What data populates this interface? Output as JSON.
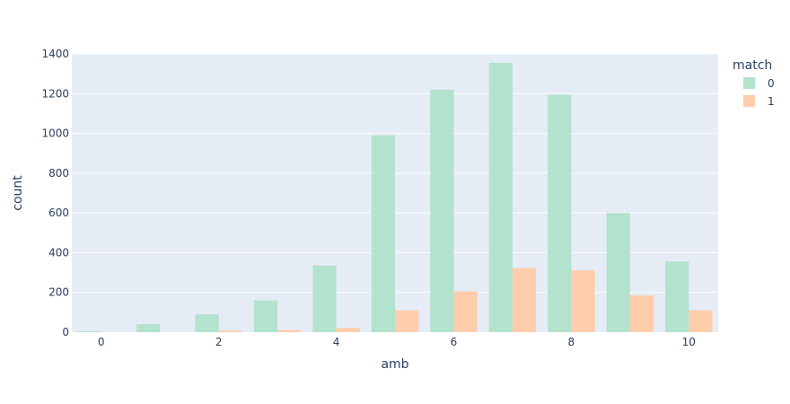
{
  "chart_data": {
    "type": "bar",
    "barmode": "group",
    "x": [
      0,
      1,
      2,
      3,
      4,
      5,
      6,
      7,
      8,
      9,
      10
    ],
    "xticks": [
      0,
      2,
      4,
      6,
      8,
      10
    ],
    "xlabel": "amb",
    "ylabel": "count",
    "ylim": [
      0,
      1400
    ],
    "yticks": [
      0,
      200,
      400,
      600,
      800,
      1000,
      1200,
      1400
    ],
    "grid": true,
    "legend": {
      "title": "match",
      "placement": "top-right"
    },
    "series": [
      {
        "name": "0",
        "color": "#b3e2cd",
        "values": [
          5,
          40,
          90,
          160,
          335,
          990,
          1220,
          1355,
          1195,
          600,
          355
        ]
      },
      {
        "name": "1",
        "color": "#fdcdac",
        "values": [
          0,
          0,
          8,
          10,
          22,
          110,
          205,
          322,
          312,
          185,
          110
        ]
      }
    ]
  }
}
